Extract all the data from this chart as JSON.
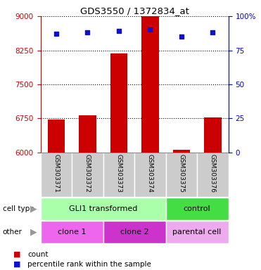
{
  "title": "GDS3550 / 1372834_at",
  "samples": [
    "GSM303371",
    "GSM303372",
    "GSM303373",
    "GSM303374",
    "GSM303375",
    "GSM303376"
  ],
  "counts": [
    6730,
    6820,
    8180,
    9000,
    6060,
    6780
  ],
  "percentile_ranks": [
    87,
    88,
    89,
    90,
    85,
    88
  ],
  "ylim": [
    6000,
    9000
  ],
  "yticks": [
    6000,
    6750,
    7500,
    8250,
    9000
  ],
  "right_yticks": [
    0,
    25,
    50,
    75,
    100
  ],
  "bar_color": "#cc0000",
  "dot_color": "#1111cc",
  "cell_type_groups": [
    {
      "label": "GLI1 transformed",
      "start": 0,
      "end": 4,
      "color": "#aaffaa"
    },
    {
      "label": "control",
      "start": 4,
      "end": 6,
      "color": "#44dd44"
    }
  ],
  "other_groups": [
    {
      "label": "clone 1",
      "start": 0,
      "end": 2,
      "color": "#ee66ee"
    },
    {
      "label": "clone 2",
      "start": 2,
      "end": 4,
      "color": "#cc33cc"
    },
    {
      "label": "parental cell",
      "start": 4,
      "end": 6,
      "color": "#eeaaee"
    }
  ],
  "legend_count_color": "#cc0000",
  "legend_dot_color": "#1111cc",
  "axis_color_left": "#cc0000",
  "axis_color_right": "#0000cc",
  "bg_color": "#ffffff",
  "sample_bg_color": "#cccccc",
  "border_color": "#888888"
}
